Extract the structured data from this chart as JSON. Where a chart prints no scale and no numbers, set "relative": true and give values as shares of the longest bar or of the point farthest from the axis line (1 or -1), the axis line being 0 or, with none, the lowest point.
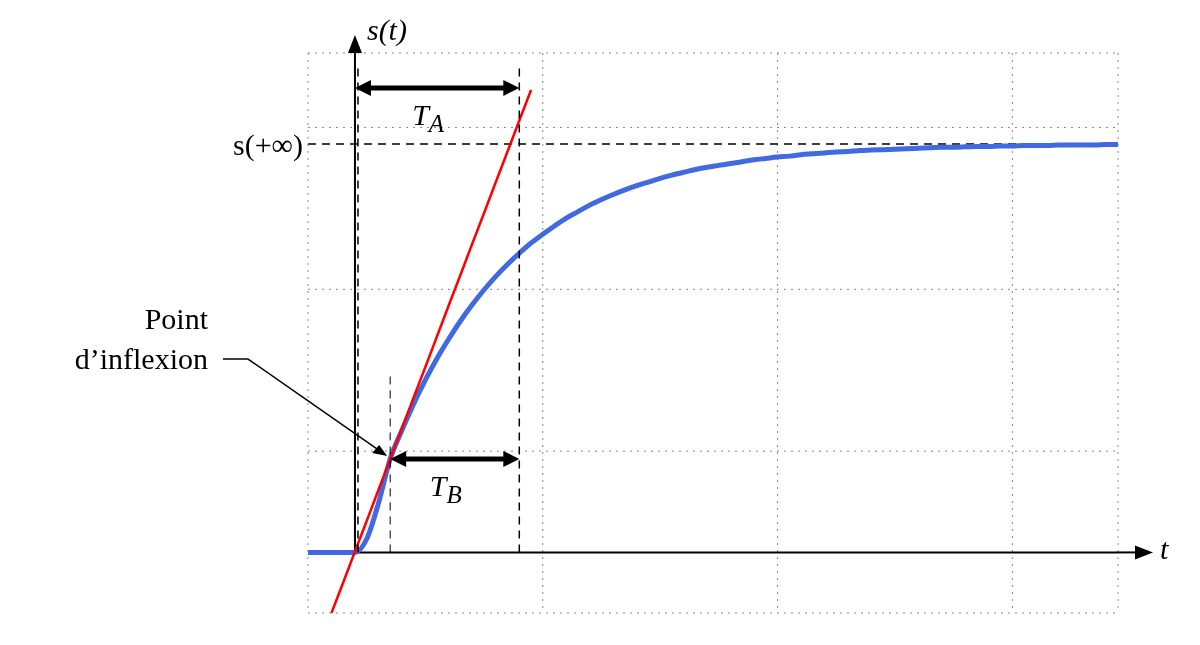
{
  "chart_data": {
    "type": "line",
    "relative": true,
    "xlabel": "t",
    "ylabel": "s(t)",
    "grid": true,
    "legend": false,
    "marker": "none",
    "line_style": "solid",
    "categories": [
      null,
      null,
      null,
      null,
      null,
      null,
      null,
      null,
      null,
      null,
      null,
      null,
      null,
      null,
      null,
      null,
      null,
      null,
      null,
      null,
      null,
      null,
      null,
      null,
      null,
      null,
      null,
      null,
      null,
      null,
      null,
      null,
      null,
      null,
      null,
      null,
      null,
      null,
      null,
      null,
      null,
      null,
      null,
      null,
      null,
      null,
      null,
      null,
      null,
      null,
      null,
      null,
      null,
      null,
      null,
      null,
      null,
      null,
      null,
      null,
      null,
      null,
      null,
      null,
      null,
      null,
      null,
      null,
      null,
      null
    ],
    "series": [
      {
        "color": "#4169e1",
        "values": [
          0,
          0,
          0,
          0,
          0,
          0.029,
          0.106,
          0.202,
          0.264,
          0.321,
          0.373,
          0.42,
          0.462,
          0.501,
          0.536,
          0.568,
          0.597,
          0.623,
          0.647,
          0.669,
          0.688,
          0.706,
          0.723,
          0.737,
          0.751,
          0.763,
          0.774,
          0.784,
          0.793,
          0.801,
          0.809,
          0.816,
          0.822,
          0.828,
          0.833,
          0.837,
          0.841,
          0.845,
          0.849,
          0.852,
          0.855,
          0.857,
          0.86,
          0.862,
          0.864,
          0.866,
          0.867,
          0.869,
          0.87,
          0.871,
          0.872,
          0.873,
          0.874,
          0.875,
          0.876,
          0.876,
          0.877,
          0.878,
          0.878,
          0.879,
          0.879,
          0.88,
          0.88,
          0.88,
          0.881,
          0.881,
          0.881,
          0.881,
          0.882,
          0.882
        ]
      },
      {
        "color": "#ff0000",
        "values": [
          null,
          null,
          -0.131,
          -0.065,
          0.002,
          0.068,
          0.135,
          0.202,
          0.268,
          0.335,
          0.401,
          0.468,
          0.535,
          0.601,
          0.668,
          0.734,
          0.801,
          0.867,
          0.934,
          1.0,
          null,
          null,
          null,
          null,
          null,
          null,
          null,
          null,
          null,
          null,
          null,
          null,
          null,
          null,
          null,
          null,
          null,
          null,
          null,
          null,
          null,
          null,
          null,
          null,
          null,
          null,
          null,
          null,
          null,
          null,
          null,
          null,
          null,
          null,
          null,
          null,
          null,
          null,
          null,
          null,
          null,
          null,
          null,
          null,
          null,
          null,
          null,
          null,
          null,
          null
        ]
      }
    ],
    "ref_lines": [
      {
        "axis": "y",
        "value": 0.883,
        "label": "s(+∞)",
        "line_style": "dashed",
        "color": "#000000"
      }
    ],
    "annotations": [
      "T$_{A}$",
      "T$_{B}$",
      "Point d’inflexion"
    ]
  }
}
